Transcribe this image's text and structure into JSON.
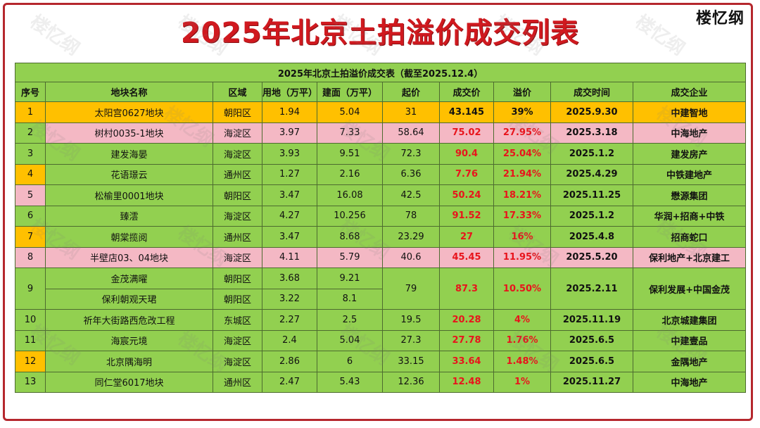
{
  "title": "2025年北京土拍溢价成交列表",
  "brand": "楼忆纲",
  "watermark": "楼忆纲",
  "table": {
    "caption": "2025年北京土拍溢价成交表（截至2025.12.4）",
    "headers": [
      "序号",
      "地块名称",
      "区域",
      "用地（万平）",
      "建面（万平）",
      "起价",
      "成交价",
      "溢价",
      "成交时间",
      "成交企业"
    ],
    "rows": [
      {
        "no": "1",
        "name": "太阳宫0627地块",
        "district": "朝阳区",
        "land": "1.94",
        "gfa": "5.04",
        "start": "31",
        "deal": "43.145",
        "premium": "39%",
        "date": "2025.9.30",
        "company": "中建智地"
      },
      {
        "no": "2",
        "name": "树村0035-1地块",
        "district": "海淀区",
        "land": "3.97",
        "gfa": "7.33",
        "start": "58.64",
        "deal": "75.02",
        "premium": "27.95%",
        "date": "2025.3.18",
        "company": "中海地产"
      },
      {
        "no": "3",
        "name": "建发海晏",
        "district": "海淀区",
        "land": "3.93",
        "gfa": "9.51",
        "start": "72.3",
        "deal": "90.4",
        "premium": "25.04%",
        "date": "2025.1.2",
        "company": "建发房产"
      },
      {
        "no": "4",
        "name": "花语璟云",
        "district": "通州区",
        "land": "1.27",
        "gfa": "2.16",
        "start": "6.36",
        "deal": "7.76",
        "premium": "21.94%",
        "date": "2025.4.29",
        "company": "中铁建地产"
      },
      {
        "no": "5",
        "name": "松榆里0001地块",
        "district": "朝阳区",
        "land": "3.47",
        "gfa": "16.08",
        "start": "42.5",
        "deal": "50.24",
        "premium": "18.21%",
        "date": "2025.11.25",
        "company": "懋源集团"
      },
      {
        "no": "6",
        "name": "臻澐",
        "district": "海淀区",
        "land": "4.27",
        "gfa": "10.256",
        "start": "78",
        "deal": "91.52",
        "premium": "17.33%",
        "date": "2025.1.2",
        "company": "华润+招商+中铁"
      },
      {
        "no": "7",
        "name": "朝棠揽阅",
        "district": "通州区",
        "land": "3.47",
        "gfa": "8.68",
        "start": "23.29",
        "deal": "27",
        "premium": "16%",
        "date": "2025.4.8",
        "company": "招商蛇口"
      },
      {
        "no": "8",
        "name": "半壁店03、04地块",
        "district": "海淀区",
        "land": "4.11",
        "gfa": "5.79",
        "start": "40.6",
        "deal": "45.45",
        "premium": "11.95%",
        "date": "2025.5.20",
        "company": "保利地产+北京建工"
      },
      {
        "no": "9",
        "sub": [
          {
            "name": "金茂满曜",
            "district": "朝阳区",
            "land": "3.68",
            "gfa": "9.21"
          },
          {
            "name": "保利朝观天珺",
            "district": "朝阳区",
            "land": "3.22",
            "gfa": "8.1"
          }
        ],
        "start": "79",
        "deal": "87.3",
        "premium": "10.50%",
        "date": "2025.2.11",
        "company": "保利发展+中国金茂"
      },
      {
        "no": "10",
        "name": "祈年大街路西危改工程",
        "district": "东城区",
        "land": "2.27",
        "gfa": "2.5",
        "start": "19.5",
        "deal": "20.28",
        "premium": "4%",
        "date": "2025.11.19",
        "company": "北京城建集团"
      },
      {
        "no": "11",
        "name": "海宸元境",
        "district": "海淀区",
        "land": "2.4",
        "gfa": "5.04",
        "start": "27.3",
        "deal": "27.78",
        "premium": "1.76%",
        "date": "2025.6.5",
        "company": "中建壹品"
      },
      {
        "no": "12",
        "name": "北京隅海明",
        "district": "海淀区",
        "land": "2.86",
        "gfa": "6",
        "start": "33.15",
        "deal": "33.64",
        "premium": "1.48%",
        "date": "2025.6.5",
        "company": "金隅地产"
      },
      {
        "no": "13",
        "name": "同仁堂6017地块",
        "district": "通州区",
        "land": "2.47",
        "gfa": "5.43",
        "start": "12.36",
        "deal": "12.48",
        "premium": "1%",
        "date": "2025.11.27",
        "company": "中海地产"
      }
    ]
  },
  "colors": {
    "green": "#92d050",
    "pink": "#f4b8c4",
    "orange": "#ffc000",
    "red": "#e8141c",
    "title_red": "#d0191f"
  }
}
